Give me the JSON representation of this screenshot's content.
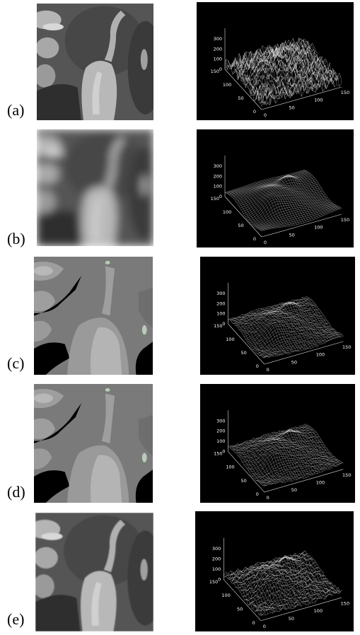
{
  "panels": [
    {
      "label": "(a)",
      "plot": {
        "z_ticks": [
          300,
          200,
          100,
          0
        ],
        "y_ticks": [
          150,
          100,
          50,
          0
        ],
        "x_ticks": [
          0,
          50,
          100,
          150
        ]
      }
    },
    {
      "label": "(b)",
      "plot": {
        "z_ticks": [
          300,
          200,
          100,
          0
        ],
        "y_ticks": [
          150,
          100,
          50,
          0
        ],
        "x_ticks": [
          0,
          50,
          100,
          150
        ]
      }
    },
    {
      "label": "(c)",
      "plot": {
        "z_ticks": [
          300,
          200,
          100,
          0
        ],
        "y_ticks": [
          150,
          100,
          50,
          0
        ],
        "x_ticks": [
          0,
          50,
          100,
          150
        ]
      }
    },
    {
      "label": "(d)",
      "plot": {
        "z_ticks": [
          300,
          200,
          100,
          0
        ],
        "y_ticks": [
          150,
          100,
          50,
          0
        ],
        "x_ticks": [
          0,
          50,
          100,
          150
        ]
      }
    },
    {
      "label": "(e)",
      "plot": {
        "z_ticks": [
          300,
          200,
          100,
          0
        ],
        "y_ticks": [
          150,
          100,
          50,
          0
        ],
        "x_ticks": [
          0,
          50,
          100,
          150
        ]
      }
    }
  ]
}
